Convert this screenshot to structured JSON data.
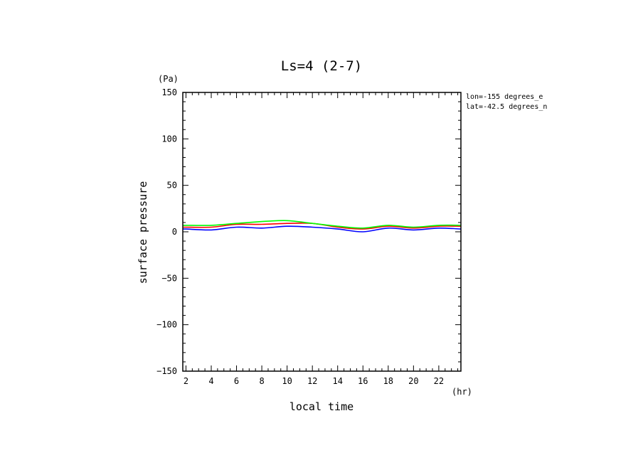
{
  "chart_data": {
    "type": "line",
    "title": "Ls=4 (2-7)",
    "xlabel": "local time",
    "ylabel": "surface pressure",
    "x_unit": "(hr)",
    "y_unit": "(Pa)",
    "xlim": [
      1.75,
      23.75
    ],
    "ylim": [
      -150,
      150
    ],
    "x_ticks": [
      2,
      4,
      6,
      8,
      10,
      12,
      14,
      16,
      18,
      20,
      22
    ],
    "y_ticks": [
      150,
      100,
      50,
      0,
      -50,
      -100,
      -150
    ],
    "grid": false,
    "annotations": [
      "lon=-155 degrees_e",
      "lat=-42.5 degrees_n"
    ],
    "x": [
      1.75,
      2,
      4,
      6,
      8,
      10,
      12,
      14,
      16,
      18,
      20,
      22,
      23.75
    ],
    "series": [
      {
        "color": "#0000ff",
        "values": [
          3,
          3,
          2,
          5,
          4,
          6,
          5,
          3,
          0,
          4,
          2,
          4,
          3
        ]
      },
      {
        "color": "#ff0000",
        "values": [
          5,
          5,
          5,
          8,
          8,
          9,
          9,
          5,
          3,
          6,
          4,
          6,
          6
        ]
      },
      {
        "color": "#00ff00",
        "values": [
          7,
          7,
          7,
          9,
          11,
          12,
          9,
          6,
          4,
          7,
          5,
          7,
          7
        ]
      }
    ]
  }
}
